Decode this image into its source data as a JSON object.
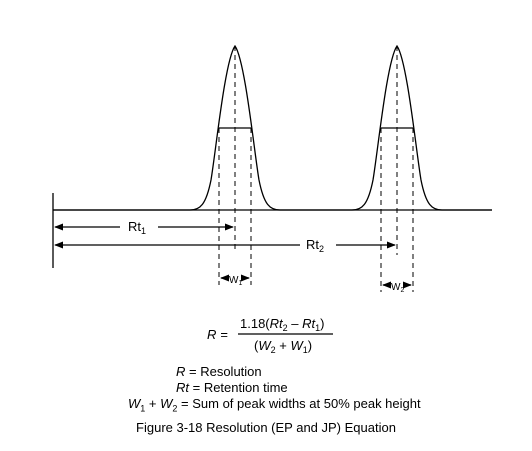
{
  "labels": {
    "rt1_main": "Rt",
    "rt1_sub": "1",
    "rt2_main": "Rt",
    "rt2_sub": "2",
    "w1_main": "W",
    "w1_sub": "1",
    "w2_main": "W",
    "w2_sub": "2"
  },
  "equation": {
    "lhs": "R",
    "equals": "=",
    "num_coef": "1.18(",
    "num_v1": "Rt",
    "num_s1": "2",
    "num_minus": " – ",
    "num_v2": "Rt",
    "num_s2": "1",
    "num_close": ")",
    "den_open": "(",
    "den_v1": "W",
    "den_s1": "2",
    "den_plus": " + ",
    "den_v2": "W",
    "den_s2": "1",
    "den_close": ")"
  },
  "definitions": [
    {
      "symbol": "R",
      "text": " = Resolution"
    },
    {
      "symbol": "Rt",
      "text": " = Retention time"
    },
    {
      "sym1": "W",
      "sub1": "1",
      "plus": " + ",
      "sym2": "W",
      "sub2": "2",
      "text": " = Sum of peak widths at 50% peak height"
    }
  ],
  "caption": "Figure 3-18  Resolution (EP and JP) Equation"
}
